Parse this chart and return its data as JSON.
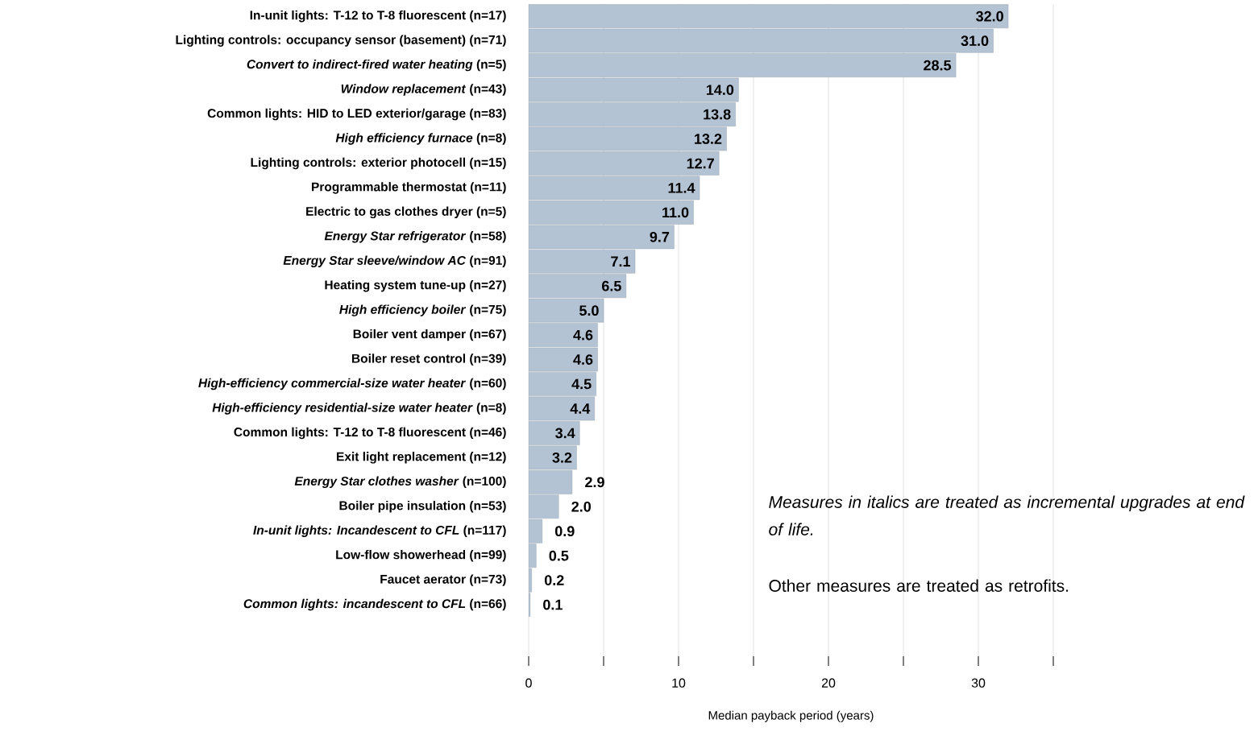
{
  "chart_data": {
    "type": "bar",
    "orientation": "horizontal",
    "xlabel": "Median payback period (years)",
    "categories": [
      "In-unit lights: T-12 to T-8 fluorescent (n=17)",
      "Lighting controls: occupancy sensor (basement) (n=71)",
      "*Convert to indirect-fired water heating* (n=5)",
      "*Window replacement* (n=43)",
      "Common lights: HID to LED exterior/garage (n=83)",
      "*High efficiency furnace* (n=8)",
      "Lighting controls: exterior photocell (n=15)",
      "Programmable thermostat (n=11)",
      "Electric to gas clothes dryer (n=5)",
      "*Energy Star refrigerator* (n=58)",
      "*Energy Star sleeve/window AC* (n=91)",
      "Heating system tune-up (n=27)",
      "*High efficiency boiler* (n=75)",
      "Boiler vent damper (n=67)",
      "Boiler reset control (n=39)",
      "*High-efficiency commercial-size water heater* (n=60)",
      "*High-efficiency residential-size water heater* (n=8)",
      "Common lights: T-12 to T-8 fluorescent (n=46)",
      "Exit light replacement (n=12)",
      "*Energy Star clothes washer* (n=100)",
      "Boiler pipe insulation (n=53)",
      "*In-unit lights: Incandescent to CFL* (n=117)",
      "Low-flow showerhead (n=99)",
      "Faucet aerator (n=73)",
      "*Common lights: incandescent to CFL* (n=66)"
    ],
    "values": [
      32.0,
      31.0,
      28.5,
      14.0,
      13.8,
      13.2,
      12.7,
      11.4,
      11.0,
      9.7,
      7.1,
      6.5,
      5.0,
      4.6,
      4.6,
      4.5,
      4.4,
      3.4,
      3.2,
      2.9,
      2.0,
      0.9,
      0.5,
      0.2,
      0.1
    ],
    "color": "#b4c3d3",
    "value_labels": [
      "32.0",
      "31.0",
      "28.5",
      "14.0",
      "13.8",
      "13.2",
      "12.7",
      "11.4",
      "11.0",
      "9.7",
      "7.1",
      "6.5",
      "5.0",
      "4.6",
      "4.6",
      "4.5",
      "4.4",
      "3.4",
      "3.2",
      "2.9",
      "2.0",
      "0.9",
      "0.5",
      "0.2",
      "0.1"
    ],
    "xlim": [
      0,
      35
    ],
    "xticks": [
      0,
      {
        "value": 5,
        "label": null
      },
      10,
      {
        "value": 15,
        "label": null
      },
      20,
      {
        "value": 25,
        "label": null
      },
      30,
      {
        "value": 35,
        "label": null
      }
    ],
    "grid": "x",
    "annotations": [
      "Measures in italics are treated as incremental upgrades at end of life.",
      "Other measures are treated as retrofits."
    ]
  }
}
